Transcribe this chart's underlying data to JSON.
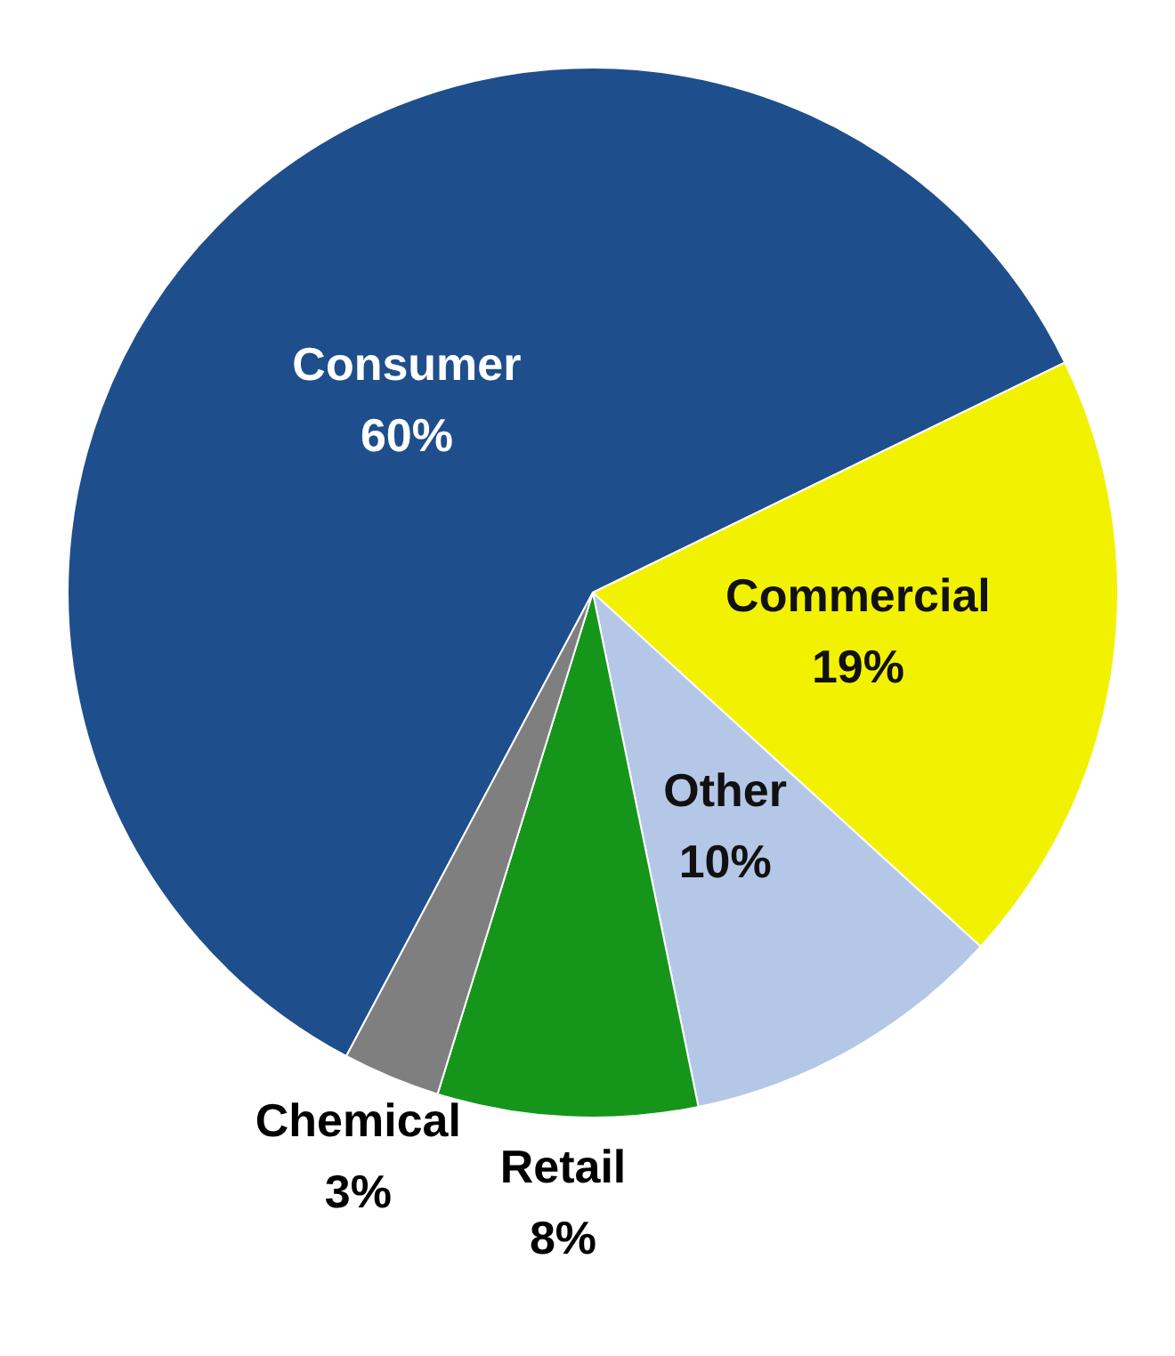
{
  "chart_data": {
    "type": "pie",
    "categories": [
      "Consumer",
      "Commercial",
      "Other",
      "Retail",
      "Chemical"
    ],
    "values": [
      60,
      19,
      10,
      8,
      3
    ],
    "colors": [
      "#1f4e8c",
      "#f2f200",
      "#b4c7e7",
      "#15961a",
      "#7f7f7f"
    ],
    "value_labels": [
      "60%",
      "19%",
      "10%",
      "8%",
      "3%"
    ],
    "legend": false
  }
}
